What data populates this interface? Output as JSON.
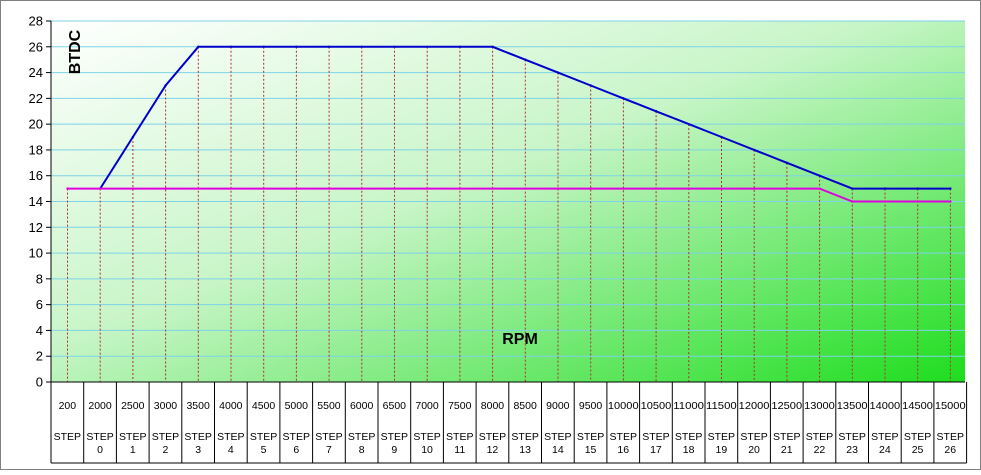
{
  "chart_data": {
    "type": "line",
    "title": "",
    "ylabel": "BTDC",
    "xlabel": "RPM",
    "ylim": [
      0,
      28
    ],
    "yticks": [
      0,
      2,
      4,
      6,
      8,
      10,
      12,
      14,
      16,
      18,
      20,
      22,
      24,
      26,
      28
    ],
    "categories": [
      "200",
      "2000",
      "2500",
      "3000",
      "3500",
      "4000",
      "4500",
      "5000",
      "5500",
      "6000",
      "6500",
      "7000",
      "7500",
      "8000",
      "8500",
      "9000",
      "9500",
      "10000",
      "10500",
      "11000",
      "11500",
      "12000",
      "12500",
      "13000",
      "13500",
      "14000",
      "14500",
      "15000"
    ],
    "step_labels": [
      "STEP",
      "STEP 0",
      "STEP 1",
      "STEP 2",
      "STEP 3",
      "STEP 4",
      "STEP 5",
      "STEP 6",
      "STEP 7",
      "STEP 8",
      "STEP 9",
      "STEP 10",
      "STEP 11",
      "STEP 12",
      "STEP 13",
      "STEP 14",
      "STEP 15",
      "STEP 16",
      "STEP 17",
      "STEP 18",
      "STEP 19",
      "STEP 20",
      "STEP 21",
      "STEP 22",
      "STEP 23",
      "STEP 24",
      "STEP 25",
      "STEP 26"
    ],
    "series": [
      {
        "color": "#0000cc",
        "values": [
          null,
          15,
          19,
          23,
          26,
          26,
          26,
          26,
          26,
          26,
          26,
          26,
          26,
          26,
          25,
          24,
          23,
          22,
          21,
          20,
          19,
          18,
          17,
          16,
          15,
          15,
          15,
          15
        ]
      },
      {
        "color": "#e000e0",
        "values": [
          15,
          15,
          15,
          15,
          15,
          15,
          15,
          15,
          15,
          15,
          15,
          15,
          15,
          15,
          15,
          15,
          15,
          15,
          15,
          15,
          15,
          15,
          15,
          15,
          14,
          14,
          14,
          14
        ]
      }
    ],
    "grid": true,
    "colors": {
      "background_top": "#ffffff",
      "background_bottom": "#1edd1e",
      "gridline": "#7dd3e8",
      "drop_line": "#b03030",
      "axis": "#000000"
    }
  }
}
